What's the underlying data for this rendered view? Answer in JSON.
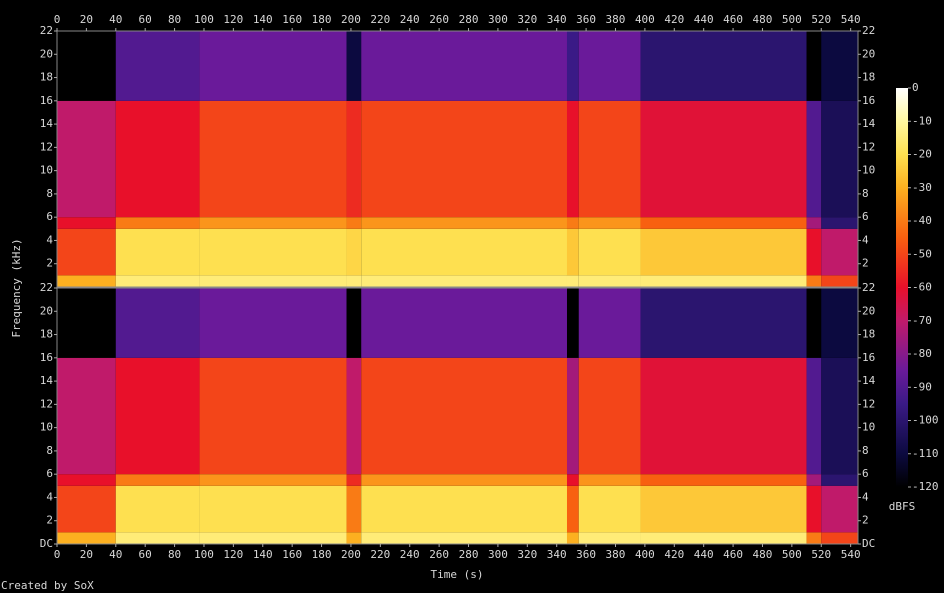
{
  "chart_data": {
    "type": "spectrogram",
    "xlabel": "Time (s)",
    "ylabel": "Frequency (kHz)",
    "credit": "Created by SoX",
    "colorbar_label": "dBFS",
    "xlim": [
      0,
      545
    ],
    "xticks": [
      0,
      20,
      40,
      60,
      80,
      100,
      120,
      140,
      160,
      180,
      200,
      220,
      240,
      260,
      280,
      300,
      320,
      340,
      360,
      380,
      400,
      420,
      440,
      460,
      480,
      500,
      520,
      540
    ],
    "ylim": [
      0,
      22
    ],
    "time_edges": [
      0,
      40,
      97,
      197,
      207,
      347,
      355,
      397,
      510,
      520,
      545
    ],
    "freq_edges": [
      0,
      1,
      5,
      6,
      16,
      22
    ],
    "channels": [
      {
        "yticks": [
          2,
          4,
          6,
          8,
          10,
          12,
          14,
          16,
          18,
          20,
          22
        ],
        "values": [
          [
            -30,
            -15,
            -15,
            -15,
            -15,
            -15,
            -15,
            -15,
            -40,
            -50
          ],
          [
            -50,
            -20,
            -20,
            -22,
            -20,
            -25,
            -20,
            -25,
            -60,
            -70
          ],
          [
            -60,
            -40,
            -35,
            -40,
            -35,
            -40,
            -35,
            -45,
            -75,
            -100
          ],
          [
            -70,
            -60,
            -50,
            -55,
            -50,
            -60,
            -50,
            -62,
            -90,
            -105
          ],
          [
            -120,
            -90,
            -85,
            -110,
            -85,
            -95,
            -85,
            -100,
            -120,
            -110
          ]
        ]
      },
      {
        "yticks": [
          {
            "value": 0,
            "label": "DC"
          },
          2,
          4,
          6,
          8,
          10,
          12,
          14,
          16,
          18,
          20,
          22
        ],
        "values": [
          [
            -30,
            -15,
            -15,
            -30,
            -15,
            -30,
            -15,
            -15,
            -40,
            -50
          ],
          [
            -50,
            -20,
            -20,
            -40,
            -20,
            -45,
            -20,
            -25,
            -60,
            -70
          ],
          [
            -60,
            -40,
            -35,
            -55,
            -35,
            -60,
            -35,
            -45,
            -75,
            -100
          ],
          [
            -70,
            -60,
            -50,
            -70,
            -50,
            -75,
            -50,
            -62,
            -90,
            -105
          ],
          [
            -120,
            -90,
            -85,
            -120,
            -85,
            -120,
            -85,
            -100,
            -120,
            -110
          ]
        ]
      }
    ],
    "clim": [
      -120,
      0
    ],
    "cticks": [
      0,
      -10,
      -20,
      -30,
      -40,
      -50,
      -60,
      -70,
      -80,
      -90,
      -100,
      -110,
      -120
    ],
    "colormap": [
      {
        "value": -120,
        "color": "#000000"
      },
      {
        "value": -110,
        "color": "#0c0a40"
      },
      {
        "value": -95,
        "color": "#3a1a86"
      },
      {
        "value": -85,
        "color": "#6a1a9a"
      },
      {
        "value": -70,
        "color": "#c01a6a"
      },
      {
        "value": -60,
        "color": "#e8102a"
      },
      {
        "value": -45,
        "color": "#f86010"
      },
      {
        "value": -30,
        "color": "#fcb020"
      },
      {
        "value": -20,
        "color": "#fee050"
      },
      {
        "value": -10,
        "color": "#fff8a0"
      },
      {
        "value": 0,
        "color": "#ffffff"
      }
    ]
  }
}
